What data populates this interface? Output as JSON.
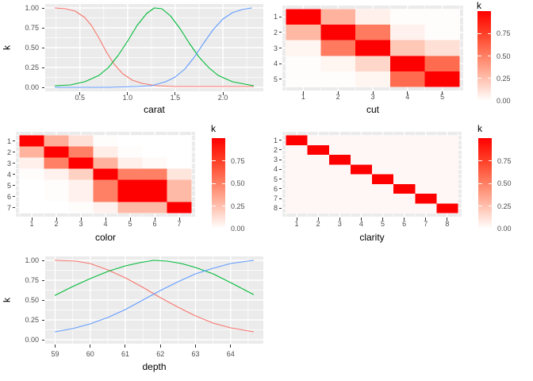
{
  "colors": {
    "background": "#FFFFFF",
    "panel": "#EBEBEB",
    "grid": "#FFFFFF",
    "tick_label": "#4D4D4D",
    "tick_mark": "#333333",
    "axis_title": "#000000",
    "heat_low": "#FFFFFF",
    "heat_high": "#FF0000"
  },
  "chart_data": [
    {
      "id": "carat",
      "type": "line",
      "xlabel": "carat",
      "ylabel": "k",
      "xlim": [
        0.24,
        2.32
      ],
      "ylim": [
        0,
        1
      ],
      "x_ticks": [
        0.5,
        1.0,
        1.5,
        2.0
      ],
      "x_tick_labels": [
        "0.5",
        "1.0",
        "1.5",
        "2.0"
      ],
      "x_minor_ticks": [
        0.25,
        0.75,
        1.25,
        1.75,
        2.25
      ],
      "y_ticks": [
        0,
        0.25,
        0.5,
        0.75,
        1.0
      ],
      "y_tick_labels": [
        "0.00",
        "0.25",
        "0.50",
        "0.75",
        "1.00"
      ],
      "y_minor_ticks": [
        0.125,
        0.375,
        0.625,
        0.875
      ],
      "grid": true,
      "legend_position": "none",
      "series": [
        {
          "name": "red",
          "color": "#F8766D",
          "points": [
            [
              0.24,
              1.0
            ],
            [
              0.35,
              0.99
            ],
            [
              0.45,
              0.96
            ],
            [
              0.55,
              0.88
            ],
            [
              0.62,
              0.78
            ],
            [
              0.7,
              0.62
            ],
            [
              0.78,
              0.44
            ],
            [
              0.86,
              0.29
            ],
            [
              0.95,
              0.17
            ],
            [
              1.05,
              0.09
            ],
            [
              1.15,
              0.05
            ],
            [
              1.3,
              0.02
            ],
            [
              1.5,
              0.01
            ],
            [
              1.8,
              0.01
            ],
            [
              2.32,
              0.01
            ]
          ]
        },
        {
          "name": "green",
          "color": "#00BA38",
          "points": [
            [
              0.24,
              0.02
            ],
            [
              0.4,
              0.03
            ],
            [
              0.55,
              0.07
            ],
            [
              0.7,
              0.15
            ],
            [
              0.8,
              0.25
            ],
            [
              0.9,
              0.4
            ],
            [
              1.0,
              0.58
            ],
            [
              1.1,
              0.78
            ],
            [
              1.2,
              0.93
            ],
            [
              1.28,
              1.0
            ],
            [
              1.36,
              0.99
            ],
            [
              1.45,
              0.9
            ],
            [
              1.55,
              0.74
            ],
            [
              1.65,
              0.55
            ],
            [
              1.75,
              0.38
            ],
            [
              1.85,
              0.25
            ],
            [
              1.95,
              0.15
            ],
            [
              2.1,
              0.07
            ],
            [
              2.32,
              0.02
            ]
          ]
        },
        {
          "name": "blue",
          "color": "#619CFF",
          "points": [
            [
              0.24,
              0.0
            ],
            [
              0.8,
              0.0
            ],
            [
              1.1,
              0.01
            ],
            [
              1.25,
              0.02
            ],
            [
              1.4,
              0.07
            ],
            [
              1.5,
              0.13
            ],
            [
              1.6,
              0.23
            ],
            [
              1.7,
              0.38
            ],
            [
              1.8,
              0.56
            ],
            [
              1.9,
              0.73
            ],
            [
              2.0,
              0.86
            ],
            [
              2.1,
              0.94
            ],
            [
              2.2,
              0.98
            ],
            [
              2.3,
              1.0
            ]
          ]
        }
      ]
    },
    {
      "id": "cut",
      "type": "heatmap",
      "xlabel": "cut",
      "legend_title": "k",
      "x_tick_labels": [
        "1",
        "2",
        "3",
        "4",
        "5"
      ],
      "y_tick_labels": [
        "1",
        "2",
        "3",
        "4",
        "5"
      ],
      "matrix": [
        [
          1.0,
          0.3,
          0.06,
          0.01,
          0.01
        ],
        [
          0.28,
          1.0,
          0.52,
          0.05,
          0.01
        ],
        [
          0.04,
          0.52,
          1.0,
          0.22,
          0.12
        ],
        [
          0.01,
          0.04,
          0.16,
          1.0,
          0.58
        ],
        [
          0.01,
          0.01,
          0.04,
          0.58,
          1.0
        ]
      ],
      "legend_ticks": [
        0,
        0.25,
        0.5,
        0.75
      ],
      "legend_tick_labels": [
        "0.00",
        "0.25",
        "0.50",
        "0.75"
      ],
      "legend_range": [
        0,
        1
      ]
    },
    {
      "id": "color",
      "type": "heatmap",
      "xlabel": "color",
      "legend_title": "k",
      "x_tick_labels": [
        "1",
        "2",
        "3",
        "4",
        "5",
        "6",
        "7"
      ],
      "y_tick_labels": [
        "1",
        "2",
        "3",
        "4",
        "5",
        "6",
        "7"
      ],
      "matrix": [
        [
          1.0,
          0.32,
          0.12,
          0.01,
          0.0,
          0.0,
          0.0
        ],
        [
          0.3,
          1.0,
          0.5,
          0.07,
          0.01,
          0.0,
          0.0
        ],
        [
          0.06,
          0.5,
          1.0,
          0.3,
          0.06,
          0.02,
          0.0
        ],
        [
          0.01,
          0.05,
          0.18,
          1.0,
          0.5,
          0.5,
          0.1
        ],
        [
          0.0,
          0.01,
          0.05,
          0.5,
          1.0,
          1.0,
          0.27
        ],
        [
          0.0,
          0.01,
          0.05,
          0.5,
          1.0,
          1.0,
          0.27
        ],
        [
          0.0,
          0.0,
          0.01,
          0.05,
          0.27,
          0.27,
          1.0
        ]
      ],
      "legend_ticks": [
        0,
        0.25,
        0.5,
        0.75
      ],
      "legend_tick_labels": [
        "0.00",
        "0.25",
        "0.50",
        "0.75"
      ],
      "legend_range": [
        0,
        1
      ]
    },
    {
      "id": "clarity",
      "type": "heatmap",
      "xlabel": "clarity",
      "legend_title": "k",
      "x_tick_labels": [
        "1",
        "2",
        "3",
        "4",
        "5",
        "6",
        "7",
        "8"
      ],
      "y_tick_labels": [
        "1",
        "2",
        "3",
        "4",
        "5",
        "6",
        "7",
        "8"
      ],
      "matrix": [
        [
          1.0,
          0.03,
          0.03,
          0.03,
          0.03,
          0.03,
          0.03,
          0.03
        ],
        [
          0.03,
          1.0,
          0.03,
          0.03,
          0.03,
          0.03,
          0.03,
          0.03
        ],
        [
          0.03,
          0.03,
          1.0,
          0.03,
          0.03,
          0.03,
          0.03,
          0.03
        ],
        [
          0.03,
          0.03,
          0.03,
          1.0,
          0.03,
          0.03,
          0.03,
          0.03
        ],
        [
          0.03,
          0.03,
          0.03,
          0.03,
          1.0,
          0.03,
          0.03,
          0.03
        ],
        [
          0.03,
          0.03,
          0.03,
          0.03,
          0.03,
          1.0,
          0.03,
          0.03
        ],
        [
          0.03,
          0.03,
          0.03,
          0.03,
          0.03,
          0.03,
          1.0,
          0.03
        ],
        [
          0.03,
          0.03,
          0.03,
          0.03,
          0.03,
          0.03,
          0.03,
          1.0
        ]
      ],
      "legend_ticks": [
        0,
        0.25,
        0.5,
        0.75
      ],
      "legend_tick_labels": [
        "0.00",
        "0.25",
        "0.50",
        "0.75"
      ],
      "legend_range": [
        0,
        1
      ]
    },
    {
      "id": "depth",
      "type": "line",
      "xlabel": "depth",
      "ylabel": "k",
      "xlim": [
        59,
        64.65
      ],
      "ylim": [
        0,
        1
      ],
      "x_ticks": [
        59,
        60,
        61,
        62,
        63,
        64
      ],
      "x_tick_labels": [
        "59",
        "60",
        "61",
        "62",
        "63",
        "64"
      ],
      "x_minor_ticks": [
        59.5,
        60.5,
        61.5,
        62.5,
        63.5,
        64.5
      ],
      "y_ticks": [
        0,
        0.25,
        0.5,
        0.75,
        1.0
      ],
      "y_tick_labels": [
        "0.00",
        "0.25",
        "0.50",
        "0.75",
        "1.00"
      ],
      "y_minor_ticks": [
        0.125,
        0.375,
        0.625,
        0.875
      ],
      "grid": true,
      "legend_position": "none",
      "series": [
        {
          "name": "red",
          "color": "#F8766D",
          "points": [
            [
              59.0,
              1.0
            ],
            [
              59.6,
              0.99
            ],
            [
              60.0,
              0.96
            ],
            [
              60.5,
              0.88
            ],
            [
              61.0,
              0.78
            ],
            [
              61.5,
              0.66
            ],
            [
              62.0,
              0.53
            ],
            [
              62.5,
              0.41
            ],
            [
              63.0,
              0.3
            ],
            [
              63.5,
              0.21
            ],
            [
              64.0,
              0.15
            ],
            [
              64.65,
              0.1
            ]
          ]
        },
        {
          "name": "green",
          "color": "#00BA38",
          "points": [
            [
              59.0,
              0.56
            ],
            [
              59.5,
              0.67
            ],
            [
              60.0,
              0.77
            ],
            [
              60.5,
              0.86
            ],
            [
              61.0,
              0.93
            ],
            [
              61.4,
              0.97
            ],
            [
              61.8,
              1.0
            ],
            [
              62.2,
              0.99
            ],
            [
              62.6,
              0.96
            ],
            [
              63.0,
              0.91
            ],
            [
              63.5,
              0.83
            ],
            [
              64.0,
              0.72
            ],
            [
              64.65,
              0.57
            ]
          ]
        },
        {
          "name": "blue",
          "color": "#619CFF",
          "points": [
            [
              59.0,
              0.1
            ],
            [
              59.5,
              0.14
            ],
            [
              60.0,
              0.2
            ],
            [
              60.5,
              0.28
            ],
            [
              61.0,
              0.38
            ],
            [
              61.5,
              0.5
            ],
            [
              62.0,
              0.62
            ],
            [
              62.5,
              0.73
            ],
            [
              63.0,
              0.83
            ],
            [
              63.5,
              0.9
            ],
            [
              64.0,
              0.96
            ],
            [
              64.65,
              1.0
            ]
          ]
        }
      ]
    }
  ]
}
